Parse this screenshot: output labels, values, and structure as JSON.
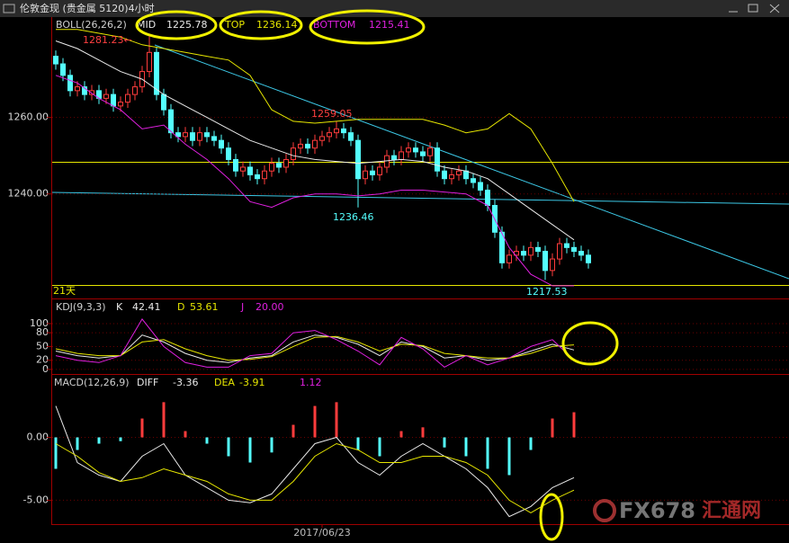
{
  "watermark": [
    "FX678",
    "汇通网"
  ],
  "chart_data": [
    {
      "type": "candlestick",
      "title": "伦敦金现 (贵金属 5120)4小时",
      "period_label": "21天",
      "up_color": "#ff3c3c",
      "down_color": "#54ffff",
      "open": [
        1276,
        1274,
        1271,
        1267,
        1268,
        1266,
        1267,
        1265,
        1266,
        1263,
        1264,
        1266,
        1268,
        1272,
        1277,
        1266,
        1262,
        1256,
        1255,
        1256,
        1254,
        1256,
        1255,
        1254,
        1252,
        1249,
        1246,
        1247,
        1245,
        1244,
        1246,
        1248,
        1247,
        1249,
        1252,
        1253,
        1252,
        1254,
        1255,
        1256,
        1257,
        1256,
        1254,
        1244,
        1246,
        1245,
        1247,
        1250,
        1249,
        1251,
        1252,
        1251,
        1250,
        1252,
        1246,
        1244,
        1245,
        1246,
        1244,
        1243,
        1241,
        1237,
        1230,
        1222,
        1224,
        1225,
        1224,
        1226,
        1225,
        1220,
        1223,
        1227,
        1226,
        1225,
        1224
      ],
      "high": [
        1277.5,
        1275.5,
        1272.5,
        1269.5,
        1269.5,
        1268.5,
        1268.5,
        1267.5,
        1267.5,
        1265.5,
        1267.5,
        1269.5,
        1273.5,
        1281.23,
        1278.5,
        1267.5,
        1263.5,
        1257.5,
        1257.5,
        1257.5,
        1257.5,
        1257.5,
        1256.5,
        1255.5,
        1253.5,
        1250.5,
        1248.5,
        1248.5,
        1246.5,
        1247.5,
        1249.5,
        1249.5,
        1250.5,
        1253.5,
        1254.5,
        1254.5,
        1255.5,
        1256.5,
        1257.5,
        1259.05,
        1258.5,
        1257.5,
        1255.5,
        1247.5,
        1247.5,
        1248.5,
        1251.5,
        1251.5,
        1252.5,
        1253.5,
        1253.5,
        1252.5,
        1253.5,
        1253.5,
        1247.5,
        1246.5,
        1247.5,
        1247.5,
        1245.5,
        1244.5,
        1242.5,
        1238.5,
        1231.5,
        1225.5,
        1226.5,
        1226.5,
        1227.5,
        1227.5,
        1226.5,
        1224.5,
        1228.5,
        1228.5,
        1227.5,
        1226.5,
        1225.5
      ],
      "low": [
        1272.5,
        1269.5,
        1265.5,
        1265.5,
        1264.5,
        1264.5,
        1263.5,
        1263.5,
        1261.5,
        1261.5,
        1262.5,
        1264.5,
        1266.5,
        1270.5,
        1264.5,
        1260.5,
        1254.5,
        1253.5,
        1253.5,
        1252.5,
        1252.5,
        1253.5,
        1252.5,
        1250.5,
        1247.5,
        1244.5,
        1244.5,
        1243.5,
        1242.5,
        1242.5,
        1244.5,
        1245.5,
        1245.5,
        1247.5,
        1250.5,
        1250.5,
        1250.5,
        1252.5,
        1253.5,
        1254.5,
        1254.5,
        1252.5,
        1236.46,
        1242.5,
        1243.5,
        1243.5,
        1245.5,
        1247.5,
        1247.5,
        1249.5,
        1249.5,
        1248.5,
        1248.5,
        1244.5,
        1242.5,
        1242.5,
        1243.5,
        1242.5,
        1241.5,
        1239.5,
        1235.5,
        1228.5,
        1220.5,
        1220.5,
        1222.5,
        1222.5,
        1222.5,
        1223.5,
        1217.53,
        1218.5,
        1221.5,
        1224.5,
        1223.5,
        1222.5,
        1220.5
      ],
      "close": [
        1274,
        1271,
        1267,
        1268,
        1266,
        1267,
        1265,
        1266,
        1263,
        1264,
        1266,
        1268,
        1272,
        1277,
        1266,
        1262,
        1256,
        1255,
        1256,
        1254,
        1256,
        1255,
        1254,
        1252,
        1249,
        1246,
        1247,
        1245,
        1244,
        1246,
        1248,
        1247,
        1249,
        1252,
        1253,
        1252,
        1254,
        1255,
        1256,
        1257,
        1256,
        1254,
        1244,
        1246,
        1245,
        1247,
        1250,
        1249,
        1251,
        1252,
        1251,
        1250,
        1252,
        1246,
        1244,
        1245,
        1246,
        1244,
        1243,
        1241,
        1237,
        1230,
        1222,
        1224,
        1225,
        1224,
        1226,
        1225,
        1220,
        1223,
        1227,
        1226,
        1225,
        1224,
        1222
      ],
      "xlim": [
        -0.5,
        74.5
      ],
      "xticks": [
        {
          "value": 37,
          "label": "2017/06/23"
        }
      ],
      "ylim": [
        1215.5,
        1286
      ],
      "yticks": [
        {
          "value": 1240,
          "label": "1240.00"
        },
        {
          "value": 1260,
          "label": "1260.00"
        }
      ],
      "annotations": [
        "1281.23←",
        "1259.05",
        "1236.46",
        "1217.53"
      ],
      "overlay": {
        "name": "BOLL(26,26,2)",
        "x": [
          0,
          3,
          6,
          9,
          12,
          15,
          18,
          21,
          24,
          27,
          30,
          33,
          36,
          39,
          42,
          45,
          48,
          51,
          54,
          57,
          60,
          63,
          66,
          69,
          72
        ],
        "series": [
          {
            "name": "MID",
            "reading": "1225.78",
            "color": "#e8e8e8",
            "values": [
              1280,
              1278,
              1275,
              1272,
              1270,
              1266,
              1263,
              1260,
              1257,
              1254,
              1252,
              1250,
              1249,
              1248.5,
              1248,
              1248.5,
              1249,
              1248.5,
              1247,
              1246,
              1244,
              1240,
              1236,
              1232,
              1228
            ]
          },
          {
            "name": "TOP",
            "reading": "1236.14",
            "color": "#e6e600",
            "values": [
              1283,
              1283,
              1282,
              1281,
              1279,
              1278,
              1277,
              1276,
              1275,
              1271,
              1262,
              1259,
              1258.5,
              1259,
              1259.5,
              1259.5,
              1259.5,
              1259.5,
              1258,
              1256,
              1257,
              1261,
              1257,
              1248,
              1238
            ]
          },
          {
            "name": "BOTTOM",
            "reading": "1215.41",
            "color": "#e020e0",
            "values": [
              1271,
              1269,
              1265,
              1262,
              1257,
              1258,
              1253,
              1249,
              1244,
              1238,
              1236.5,
              1239,
              1240,
              1240,
              1239.5,
              1240,
              1241,
              1241,
              1240.5,
              1240,
              1237,
              1226,
              1219,
              1216,
              1216
            ]
          }
        ]
      }
    },
    {
      "type": "line",
      "title": "KDJ(9,3,3)",
      "x": [
        0,
        3,
        6,
        9,
        12,
        15,
        18,
        21,
        24,
        27,
        30,
        33,
        36,
        39,
        42,
        45,
        48,
        51,
        54,
        57,
        60,
        63,
        66,
        69,
        72
      ],
      "xlim": [
        -0.5,
        74.5
      ],
      "ylim": [
        -8,
        149
      ],
      "yticks": [
        0,
        20,
        50,
        80,
        100
      ],
      "series": [
        {
          "name": "K",
          "reading": "42.41",
          "color": "#e8e8e8",
          "values": [
            40,
            30,
            25,
            30,
            75,
            60,
            35,
            20,
            15,
            25,
            30,
            60,
            75,
            70,
            55,
            30,
            60,
            50,
            25,
            30,
            20,
            25,
            40,
            55,
            42.41
          ]
        },
        {
          "name": "D",
          "reading": "53.61",
          "color": "#e6e600",
          "values": [
            45,
            35,
            30,
            30,
            60,
            65,
            45,
            30,
            20,
            22,
            28,
            50,
            70,
            72,
            60,
            40,
            55,
            52,
            35,
            30,
            25,
            25,
            35,
            50,
            53.61
          ]
        },
        {
          "name": "J",
          "reading": "20.00",
          "color": "#e020e0",
          "values": [
            30,
            20,
            15,
            30,
            110,
            50,
            15,
            5,
            5,
            30,
            35,
            80,
            85,
            65,
            40,
            10,
            70,
            45,
            5,
            30,
            10,
            25,
            50,
            65,
            20
          ]
        }
      ]
    },
    {
      "type": "macd",
      "title": "MACD(12,26,9)",
      "reading": "1.12",
      "up_color": "#ff3c3c",
      "down_color": "#54ffff",
      "x": [
        0,
        3,
        6,
        9,
        12,
        15,
        18,
        21,
        24,
        27,
        30,
        33,
        36,
        39,
        42,
        45,
        48,
        51,
        54,
        57,
        60,
        63,
        66,
        69,
        72
      ],
      "xlim": [
        -0.5,
        74.5
      ],
      "ylim": [
        -6.9,
        4.9
      ],
      "yticks": [
        {
          "value": -5,
          "label": "-5.00"
        },
        {
          "value": 0,
          "label": "0.00"
        }
      ],
      "values": [
        -2.5,
        -1,
        -0.5,
        -0.3,
        1.5,
        2.8,
        0.5,
        -0.5,
        -1.5,
        -2,
        -1.2,
        1,
        2.5,
        2.8,
        -1,
        -1.5,
        0.5,
        0.8,
        -0.8,
        -1.5,
        -2.5,
        -3,
        -1,
        1.5,
        2
      ],
      "series": [
        {
          "name": "DIFF",
          "reading": "-3.36",
          "color": "#e8e8e8",
          "values": [
            2.5,
            -2,
            -3,
            -3.5,
            -1.5,
            -0.5,
            -3,
            -4,
            -5,
            -5.2,
            -4.5,
            -2.5,
            -0.5,
            0,
            -2,
            -3,
            -1.5,
            -0.5,
            -1.5,
            -2.5,
            -4,
            -6.3,
            -5.5,
            -4,
            -3.2
          ]
        },
        {
          "name": "DEA",
          "reading": "-3.91",
          "color": "#e6e600",
          "values": [
            -0.5,
            -1.5,
            -2.8,
            -3.5,
            -3.2,
            -2.5,
            -3,
            -3.5,
            -4.5,
            -5,
            -5,
            -3.5,
            -1.5,
            -0.5,
            -1,
            -2,
            -2,
            -1.5,
            -1.5,
            -2,
            -3,
            -5,
            -6,
            -5,
            -4.2
          ]
        }
      ]
    }
  ]
}
